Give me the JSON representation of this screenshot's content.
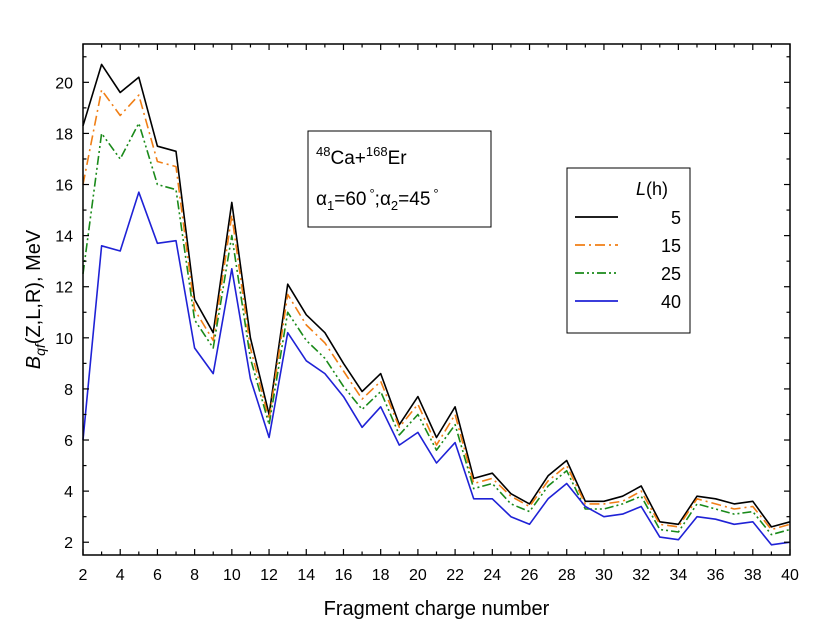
{
  "chart_data": {
    "type": "line",
    "xlabel": "Fragment charge number",
    "ylabel_parts": {
      "main": "B",
      "sub": "qf",
      "args": "(Z,L,R), MeV"
    },
    "xlim": [
      2,
      40
    ],
    "ylim": [
      1.5,
      21.5
    ],
    "x_ticks": [
      2,
      4,
      6,
      8,
      10,
      12,
      14,
      16,
      18,
      20,
      22,
      24,
      26,
      28,
      30,
      32,
      34,
      36,
      38,
      40
    ],
    "y_ticks": [
      2,
      4,
      6,
      8,
      10,
      12,
      14,
      16,
      18,
      20
    ],
    "grid": false,
    "legend_position": "right",
    "legend_title": {
      "italic": "L",
      "rest": "(h)"
    },
    "annotation": {
      "reaction": {
        "sup1": "48",
        "el1": "Ca+",
        "sup2": "168",
        "el2": "Er"
      },
      "angles": {
        "a1_sub": "1",
        "a1_val": "=60",
        "deg": "°",
        "sep": ";",
        "a2_sub": "2",
        "a2_val": "=45"
      }
    },
    "x": [
      2,
      3,
      4,
      5,
      6,
      7,
      8,
      9,
      10,
      11,
      12,
      13,
      14,
      15,
      16,
      17,
      18,
      19,
      20,
      21,
      22,
      23,
      24,
      25,
      26,
      27,
      28,
      29,
      30,
      31,
      32,
      33,
      34,
      35,
      36,
      37,
      38,
      39,
      40
    ],
    "series": [
      {
        "name": "5",
        "color": "#000000",
        "dash": "solid",
        "values": [
          18.3,
          20.7,
          19.6,
          20.2,
          17.5,
          17.3,
          11.5,
          10.2,
          15.3,
          10.0,
          7.0,
          12.1,
          10.9,
          10.2,
          9.0,
          7.9,
          8.6,
          6.6,
          7.7,
          6.1,
          7.3,
          4.5,
          4.7,
          3.9,
          3.5,
          4.6,
          5.2,
          3.6,
          3.6,
          3.8,
          4.2,
          2.8,
          2.7,
          3.8,
          3.7,
          3.5,
          3.6,
          2.6,
          2.8
        ]
      },
      {
        "name": "15",
        "color": "#f07f16",
        "dash": "dashdot",
        "values": [
          16.0,
          19.7,
          18.7,
          19.5,
          16.9,
          16.7,
          11.1,
          9.9,
          14.8,
          9.6,
          6.8,
          11.7,
          10.5,
          9.8,
          8.7,
          7.6,
          8.3,
          6.5,
          7.4,
          5.8,
          7.0,
          4.3,
          4.5,
          3.8,
          3.4,
          4.4,
          5.0,
          3.5,
          3.5,
          3.6,
          4.0,
          2.7,
          2.6,
          3.7,
          3.5,
          3.3,
          3.4,
          2.5,
          2.7
        ]
      },
      {
        "name": "25",
        "color": "#1a8a1a",
        "dash": "dashdotdot",
        "values": [
          12.5,
          18.0,
          17.0,
          18.4,
          16.0,
          15.8,
          10.7,
          9.6,
          14.0,
          9.2,
          6.6,
          11.0,
          9.9,
          9.2,
          8.1,
          7.2,
          7.9,
          6.2,
          7.0,
          5.6,
          6.6,
          4.1,
          4.3,
          3.5,
          3.2,
          4.2,
          4.8,
          3.3,
          3.3,
          3.5,
          3.8,
          2.5,
          2.4,
          3.5,
          3.3,
          3.1,
          3.2,
          2.3,
          2.5
        ]
      },
      {
        "name": "40",
        "color": "#1f22d6",
        "dash": "solid",
        "values": [
          6.0,
          13.6,
          13.4,
          15.7,
          13.7,
          13.8,
          9.6,
          8.6,
          12.7,
          8.4,
          6.1,
          10.2,
          9.1,
          8.6,
          7.7,
          6.5,
          7.3,
          5.8,
          6.3,
          5.1,
          5.9,
          3.7,
          3.7,
          3.0,
          2.7,
          3.7,
          4.3,
          3.4,
          3.0,
          3.1,
          3.4,
          2.2,
          2.1,
          3.0,
          2.9,
          2.7,
          2.8,
          1.9,
          2.0
        ]
      }
    ]
  }
}
